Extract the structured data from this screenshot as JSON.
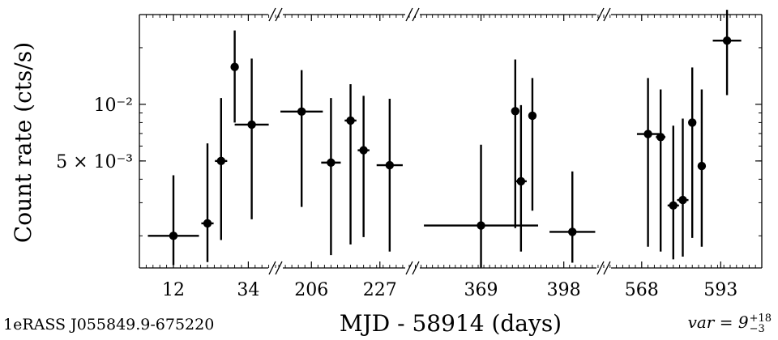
{
  "chart_data": {
    "type": "scatter",
    "xlabel": "MJD - 58914 (days)",
    "ylabel": "Count rate (cts/s)",
    "y_scale": "log",
    "ylim": [
      0.00135,
      0.03
    ],
    "y_ticks": [
      {
        "value": 0.01,
        "label": "10⁻²"
      },
      {
        "value": 0.005,
        "label": "5 × 10⁻³"
      }
    ],
    "broken_axis": true,
    "segments": [
      {
        "xlim": [
          2,
          42
        ],
        "x_ticks": [
          12,
          34
        ],
        "points": [
          {
            "x": 12,
            "xerr": 7.5,
            "y": 0.002,
            "ylo": 0.0014,
            "yhi": 0.0042
          },
          {
            "x": 22,
            "xerr": 1.8,
            "y": 0.00233,
            "ylo": 0.00145,
            "yhi": 0.0062
          },
          {
            "x": 26,
            "xerr": 1.8,
            "y": 0.005,
            "ylo": 0.0019,
            "yhi": 0.0108
          },
          {
            "x": 30,
            "xerr": 0.0,
            "y": 0.0158,
            "ylo": 0.008,
            "yhi": 0.0247
          },
          {
            "x": 35,
            "xerr": 5.0,
            "y": 0.0078,
            "ylo": 0.00245,
            "yhi": 0.0175
          }
        ]
      },
      {
        "xlim": [
          195,
          237
        ],
        "x_ticks": [
          206,
          227
        ],
        "points": [
          {
            "x": 203,
            "xerr": 6.5,
            "y": 0.00915,
            "ylo": 0.00285,
            "yhi": 0.0152
          },
          {
            "x": 212,
            "xerr": 3.0,
            "y": 0.0049,
            "ylo": 0.00158,
            "yhi": 0.0108
          },
          {
            "x": 218,
            "xerr": 1.8,
            "y": 0.0082,
            "ylo": 0.0018,
            "yhi": 0.0128
          },
          {
            "x": 222,
            "xerr": 1.8,
            "y": 0.0057,
            "ylo": 0.00197,
            "yhi": 0.0111
          },
          {
            "x": 230,
            "xerr": 4.0,
            "y": 0.00475,
            "ylo": 0.00165,
            "yhi": 0.0107
          }
        ]
      },
      {
        "xlim": [
          345,
          412
        ],
        "x_ticks": [
          369,
          398
        ],
        "points": [
          {
            "x": 369,
            "xerr": 20.0,
            "y": 0.00227,
            "ylo": 0.00136,
            "yhi": 0.0061
          },
          {
            "x": 381,
            "xerr": 0.0,
            "y": 0.0092,
            "ylo": 0.0022,
            "yhi": 0.0173
          },
          {
            "x": 383,
            "xerr": 2.0,
            "y": 0.0039,
            "ylo": 0.00165,
            "yhi": 0.0099
          },
          {
            "x": 387,
            "xerr": 1.0,
            "y": 0.0087,
            "ylo": 0.00272,
            "yhi": 0.0138
          },
          {
            "x": 401,
            "xerr": 8.0,
            "y": 0.0021,
            "ylo": 0.00144,
            "yhi": 0.0044
          }
        ]
      },
      {
        "xlim": [
          556,
          606
        ],
        "x_ticks": [
          568,
          593
        ],
        "points": [
          {
            "x": 570,
            "xerr": 3.5,
            "y": 0.00695,
            "ylo": 0.00175,
            "yhi": 0.0138
          },
          {
            "x": 574,
            "xerr": 1.5,
            "y": 0.0067,
            "ylo": 0.00165,
            "yhi": 0.012
          },
          {
            "x": 578,
            "xerr": 1.8,
            "y": 0.0029,
            "ylo": 0.0015,
            "yhi": 0.0077
          },
          {
            "x": 581,
            "xerr": 1.8,
            "y": 0.0031,
            "ylo": 0.00155,
            "yhi": 0.0084
          },
          {
            "x": 584,
            "xerr": 0.5,
            "y": 0.008,
            "ylo": 0.00195,
            "yhi": 0.0157
          },
          {
            "x": 587,
            "xerr": 1.0,
            "y": 0.0047,
            "ylo": 0.00175,
            "yhi": 0.012
          },
          {
            "x": 595,
            "xerr": 4.5,
            "y": 0.0218,
            "ylo": 0.0112,
            "yhi": 0.0318
          }
        ]
      }
    ]
  },
  "annotations": {
    "source_name": "1eRASS J055849.9-675220",
    "var_prefix": "var = 9",
    "var_sup": "+18",
    "var_sub": "−3"
  }
}
